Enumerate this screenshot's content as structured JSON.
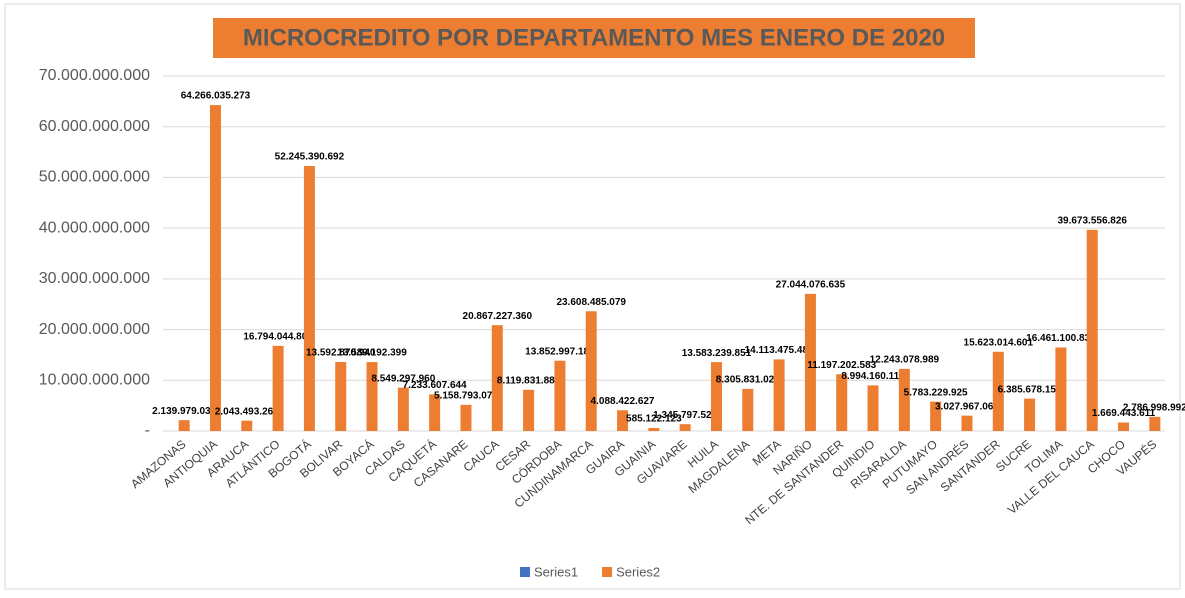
{
  "chart_data": {
    "type": "bar",
    "title": "MICROCREDITO POR DEPARTAMENTO MES ENERO DE 2020",
    "categories": [
      "AMAZONAS",
      "ANTIOQUIA",
      "ARAUCA",
      "ATLÁNTICO",
      "BOGOTÁ",
      "BOLIVAR",
      "BOYACÁ",
      "CALDAS",
      "CAQUETÁ",
      "CASANARE",
      "CAUCA",
      "CESAR",
      "CÓRDOBA",
      "CUNDINAMARCA",
      "GUAIRA",
      "GUAINIA",
      "GUAVIARE",
      "HUILA",
      "MAGDALENA",
      "META",
      "NARIÑO",
      "NTE. DE SANTANDER",
      "QUINDIO",
      "RISARALDA",
      "PUTUMAYO",
      "SAN ANDRÉS",
      "SANTANDER",
      "SUCRE",
      "TOLIMA",
      "VALLE DEL CAUCA",
      "CHOCO",
      "VAUPÉS"
    ],
    "series": [
      {
        "name": "Series1",
        "color": "#4472c4",
        "values": [
          null,
          null,
          null,
          null,
          null,
          null,
          null,
          null,
          null,
          null,
          null,
          null,
          null,
          null,
          null,
          null,
          null,
          null,
          null,
          null,
          null,
          null,
          null,
          null,
          null,
          null,
          null,
          null,
          null,
          null,
          null,
          null
        ]
      },
      {
        "name": "Series2",
        "color": "#ed7d31",
        "values": [
          2139979032,
          64266035273,
          2043493261,
          16794044804,
          52245390692,
          13592870940,
          13589192399,
          8549297960,
          7233607644,
          5158793076,
          20867227360,
          8119831884,
          13852997182,
          23608485079,
          4088422627,
          585122123,
          1345797529,
          13583239851,
          8305831029,
          14113475482,
          27044076635,
          11197202583,
          8994160110,
          12243078989,
          5783229925,
          3027967068,
          15623014601,
          6385678158,
          16461100839,
          39673556826,
          1669443611,
          2786998992
        ],
        "value_labels": [
          "2.139.979.032",
          "64.266.035.273",
          "2.043.493.261",
          "16.794.044.804",
          "52.245.390.692",
          "13.592.870.940",
          "13.589.192.399",
          "8.549.297.960",
          "7.233.607.644",
          "5.158.793.076",
          "20.867.227.360",
          "8.119.831.884",
          "13.852.997.182",
          "23.608.485.079",
          "4.088.422.627",
          "585.122.123",
          "1.345.797.529",
          "13.583.239.851",
          "8.305.831.029",
          "14.113.475.482",
          "27.044.076.635",
          "11.197.202.583",
          "8.994.160.110",
          "12.243.078.989",
          "5.783.229.925",
          "3.027.967.068",
          "15.623.014.601",
          "6.385.678.158",
          "16.461.100.839",
          "39.673.556.826",
          "1.669.443.611",
          "2.786.998.992"
        ]
      }
    ],
    "ylim": [
      0,
      70000000000
    ],
    "yticks": [
      {
        "value": 0,
        "label": "-"
      },
      {
        "value": 10000000000,
        "label": "10.000.000.000"
      },
      {
        "value": 20000000000,
        "label": "20.000.000.000"
      },
      {
        "value": 30000000000,
        "label": "30.000.000.000"
      },
      {
        "value": 40000000000,
        "label": "40.000.000.000"
      },
      {
        "value": 50000000000,
        "label": "50.000.000.000"
      },
      {
        "value": 60000000000,
        "label": "60.000.000.000"
      },
      {
        "value": 70000000000,
        "label": "70.000.000.000"
      }
    ],
    "grid": true,
    "legend": "bottom"
  }
}
